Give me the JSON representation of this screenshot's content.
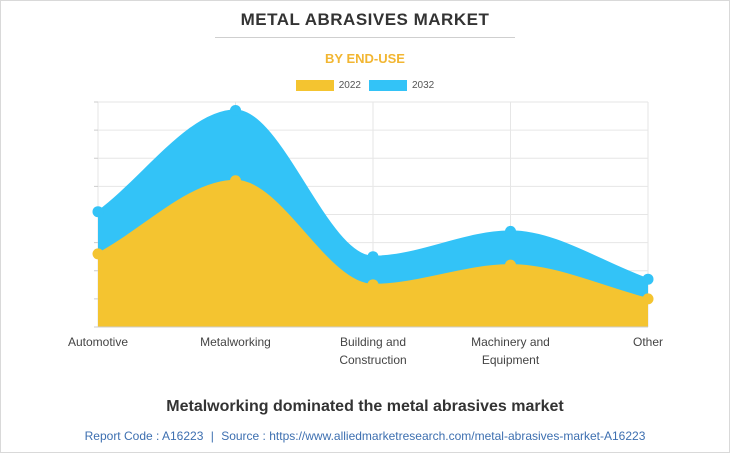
{
  "title": "METAL ABRASIVES MARKET",
  "subtitle": "BY END-USE",
  "headline": "Metalworking dominated the metal abrasives market",
  "source": {
    "report_label": "Report Code : A16223",
    "separator": "|",
    "source_label": "Source : https://www.alliedmarketresearch.com/metal-abrasives-market-A16223"
  },
  "colors": {
    "s2022": "#f4c430",
    "s2032": "#33c3f7",
    "subtitle": "#f2b632",
    "grid": "#e6e6e6"
  },
  "chart_data": {
    "type": "area",
    "title": "METAL ABRASIVES MARKET",
    "subtitle": "BY END-USE",
    "categories": [
      [
        "Automotive"
      ],
      [
        "Metalworking"
      ],
      [
        "Building and",
        "Construction"
      ],
      [
        "Machinery and",
        "Equipment"
      ],
      [
        "Other"
      ]
    ],
    "series": [
      {
        "name": "2022",
        "values": [
          2.6,
          5.2,
          1.5,
          2.2,
          1.0
        ]
      },
      {
        "name": "2032",
        "values": [
          4.1,
          7.7,
          2.5,
          3.4,
          1.7
        ]
      }
    ],
    "stacked": false,
    "ylim": [
      0,
      8
    ],
    "y_ticks": [
      0,
      1,
      2,
      3,
      4,
      5,
      6,
      7,
      8
    ],
    "y_tick_labels_visible": false,
    "xlabel": "",
    "ylabel": "",
    "grid": true,
    "legend": "top-center"
  }
}
